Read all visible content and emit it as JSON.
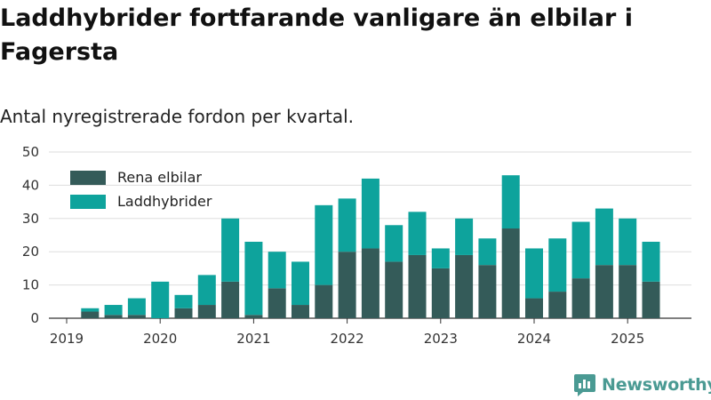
{
  "title": "Laddhybrider fortfarande vanligare än elbilar i Fagersta",
  "subtitle": "Antal nyregistrerade fordon per kvartal.",
  "brand": {
    "name": "Newsworthy",
    "icon": "newsworthy-logo-icon"
  },
  "colors": {
    "elbil": "#345b59",
    "laddhybrid": "#0ea39c",
    "grid": "#dddddd",
    "axis": "#333333",
    "brand": "#4a9a93"
  },
  "chart_data": {
    "type": "bar",
    "stacked": true,
    "categories": [
      "2019 Q1",
      "2019 Q2",
      "2019 Q3",
      "2019 Q4",
      "2020 Q1",
      "2020 Q2",
      "2020 Q3",
      "2020 Q4",
      "2021 Q1",
      "2021 Q2",
      "2021 Q3",
      "2021 Q4",
      "2022 Q1",
      "2022 Q2",
      "2022 Q3",
      "2022 Q4",
      "2023 Q1",
      "2023 Q2",
      "2023 Q3",
      "2023 Q4",
      "2024 Q1",
      "2024 Q2",
      "2024 Q3",
      "2024 Q4",
      "2025 Q1",
      "2025 Q2"
    ],
    "series": [
      {
        "name": "Rena elbilar",
        "color": "#345b59",
        "values": [
          0,
          2,
          1,
          1,
          0,
          3,
          4,
          11,
          1,
          9,
          4,
          10,
          20,
          21,
          17,
          19,
          15,
          19,
          16,
          27,
          6,
          8,
          12,
          16,
          16,
          11
        ]
      },
      {
        "name": "Laddhybrider",
        "color": "#0ea39c",
        "values": [
          0,
          1,
          3,
          5,
          11,
          4,
          9,
          19,
          22,
          11,
          13,
          24,
          16,
          21,
          11,
          13,
          6,
          11,
          8,
          16,
          15,
          16,
          17,
          17,
          14,
          12
        ]
      }
    ],
    "x_tick_labels": [
      "2019",
      "2020",
      "2021",
      "2022",
      "2023",
      "2024",
      "2025"
    ],
    "y_ticks": [
      0,
      10,
      20,
      30,
      40,
      50
    ],
    "ylim": [
      0,
      50
    ],
    "grid": true,
    "legend_position": "top-left"
  }
}
